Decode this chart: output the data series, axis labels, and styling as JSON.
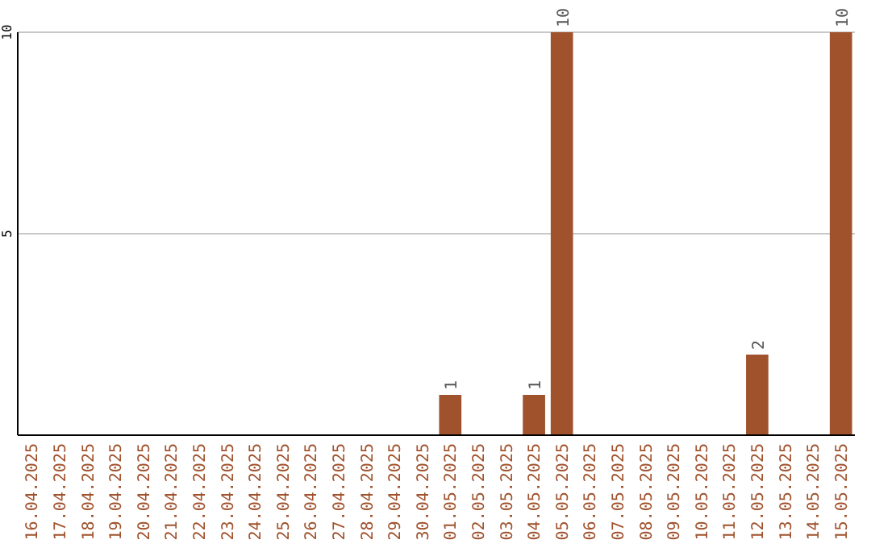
{
  "chart_data": {
    "type": "bar",
    "categories": [
      "16.04.2025",
      "17.04.2025",
      "18.04.2025",
      "19.04.2025",
      "20.04.2025",
      "21.04.2025",
      "22.04.2025",
      "23.04.2025",
      "24.04.2025",
      "25.04.2025",
      "26.04.2025",
      "27.04.2025",
      "28.04.2025",
      "29.04.2025",
      "30.04.2025",
      "01.05.2025",
      "02.05.2025",
      "03.05.2025",
      "04.05.2025",
      "05.05.2025",
      "06.05.2025",
      "07.05.2025",
      "08.05.2025",
      "09.05.2025",
      "10.05.2025",
      "11.05.2025",
      "12.05.2025",
      "13.05.2025",
      "14.05.2025",
      "15.05.2025"
    ],
    "values": [
      0,
      0,
      0,
      0,
      0,
      0,
      0,
      0,
      0,
      0,
      0,
      0,
      0,
      0,
      0,
      1,
      0,
      0,
      1,
      10,
      0,
      0,
      0,
      0,
      0,
      0,
      2,
      0,
      0,
      10
    ],
    "value_labels": [
      null,
      null,
      null,
      null,
      null,
      null,
      null,
      null,
      null,
      null,
      null,
      null,
      null,
      null,
      null,
      "1",
      null,
      null,
      "1",
      "10",
      null,
      null,
      null,
      null,
      null,
      null,
      "2",
      null,
      null,
      "10"
    ],
    "color": "#a0522d",
    "ylim": [
      0,
      10
    ],
    "yticks": [
      5,
      10
    ],
    "grid": "y"
  }
}
